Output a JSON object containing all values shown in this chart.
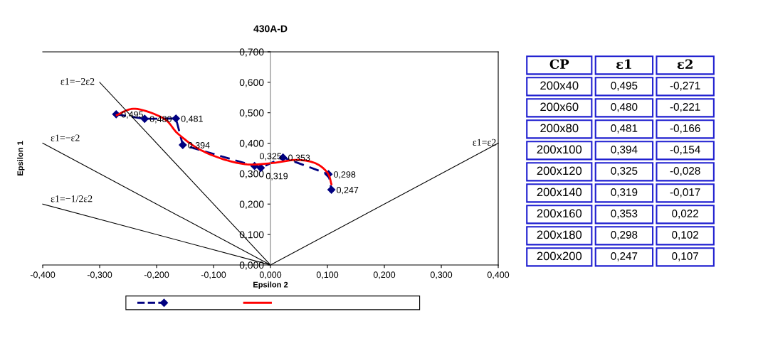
{
  "chart_data": [
    {
      "type": "line",
      "title": "430A-D",
      "xlabel": "Epsilon 2",
      "ylabel": "Epsilon 1",
      "xlim": [
        -0.4,
        0.4
      ],
      "xticks": [
        {
          "value": -0.4,
          "label": "-0,400"
        },
        {
          "value": -0.3,
          "label": "-0,300"
        },
        {
          "value": -0.2,
          "label": "-0,200"
        },
        {
          "value": -0.1,
          "label": "-0,100"
        },
        {
          "value": 0,
          "label": "0,000"
        },
        {
          "value": 0.1,
          "label": "0,100"
        },
        {
          "value": 0.2,
          "label": "0,200"
        },
        {
          "value": 0.3,
          "label": "0,300"
        },
        {
          "value": 0.4,
          "label": "0,400"
        }
      ],
      "ylim": [
        0,
        0.7
      ],
      "yticks": [
        {
          "value": 0,
          "label": "0,000"
        },
        {
          "value": 0.1,
          "label": "0,100"
        },
        {
          "value": 0.2,
          "label": "0,200"
        },
        {
          "value": 0.3,
          "label": "0,300"
        },
        {
          "value": 0.4,
          "label": "0,400"
        },
        {
          "value": 0.5,
          "label": "0,500"
        },
        {
          "value": 0.6,
          "label": "0,600"
        },
        {
          "value": 0.7,
          "label": "0,700"
        }
      ],
      "grid": false,
      "series": [
        {
          "color": "#000080",
          "marker": "diamond",
          "line_style": "dashed",
          "x": [
            -0.271,
            -0.221,
            -0.166,
            -0.154,
            -0.028,
            -0.017,
            0.022,
            0.102,
            0.107
          ],
          "values": [
            0.495,
            0.48,
            0.481,
            0.394,
            0.325,
            0.319,
            0.353,
            0.298,
            0.247
          ],
          "value_labels": [
            "0,495",
            "0,480",
            "0,481",
            "0,394",
            "0,325",
            "0,319",
            "0,353",
            "0,298",
            "0,247"
          ]
        },
        {
          "color": "#ff0000",
          "marker": "none",
          "line_style": "solid",
          "x": [
            -0.27,
            -0.2375,
            -0.1875,
            -0.1625,
            -0.125,
            -0.079,
            -0.0375,
            0.004,
            0.046,
            0.079,
            0.1,
            0.107
          ],
          "values": [
            0.492,
            0.513,
            0.481,
            0.431,
            0.38,
            0.345,
            0.33,
            0.335,
            0.345,
            0.334,
            0.303,
            0.265
          ]
        },
        {
          "name": "ε1=−2ε2",
          "color": "#000000",
          "marker": "none",
          "line_style": "solid",
          "x": [
            -0.3,
            0
          ],
          "values": [
            0.6,
            0
          ]
        },
        {
          "name": "ε1=−ε2",
          "color": "#000000",
          "marker": "none",
          "line_style": "solid",
          "x": [
            -0.4,
            0
          ],
          "values": [
            0.4,
            0
          ]
        },
        {
          "name": "ε1=−1/2ε2",
          "color": "#000000",
          "marker": "none",
          "line_style": "solid",
          "x": [
            -0.4,
            0
          ],
          "values": [
            0.2,
            0
          ]
        },
        {
          "name": "ε1=ε2",
          "color": "#000000",
          "marker": "none",
          "line_style": "solid",
          "x": [
            0,
            0.4
          ],
          "values": [
            0,
            0.4
          ]
        }
      ]
    },
    {
      "type": "other",
      "ylabel": "CP",
      "categories": [
        "ε1",
        "ε2"
      ],
      "y_categories": [
        "200x40",
        "200x60",
        "200x80",
        "200x100",
        "200x120",
        "200x140",
        "200x160",
        "200x180",
        "200x200"
      ],
      "cell_labels": [
        [
          "0,495",
          "-0,271"
        ],
        [
          "0,480",
          "-0,221"
        ],
        [
          "0,481",
          "-0,166"
        ],
        [
          "0,394",
          "-0,154"
        ],
        [
          "0,325",
          "-0,028"
        ],
        [
          "0,319",
          "-0,017"
        ],
        [
          "0,353",
          "0,022"
        ],
        [
          "0,298",
          "0,102"
        ],
        [
          "0,247",
          "0,107"
        ]
      ]
    }
  ]
}
